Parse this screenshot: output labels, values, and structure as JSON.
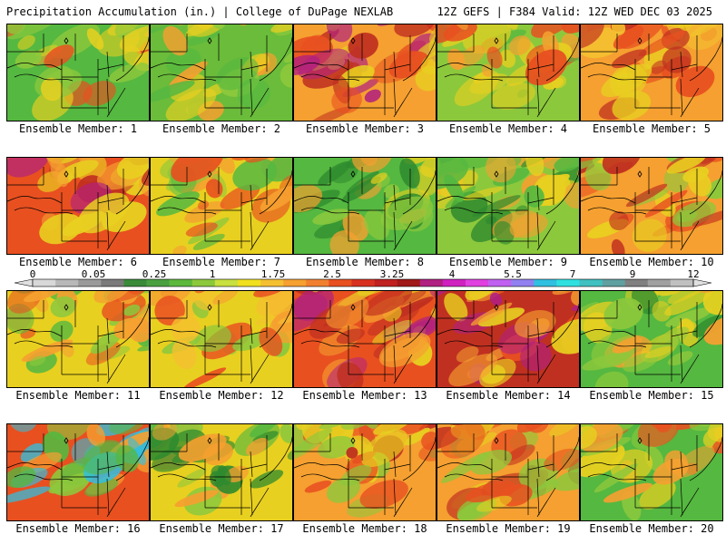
{
  "header": {
    "left": "Precipitation Accumulation (in.) | College of DuPage NEXLAB",
    "right": "12Z GEFS | F384 Valid: 12Z WED DEC 03 2025"
  },
  "panels": [
    {
      "label": "Ensemble Member: 1",
      "palette": [
        "#55b840",
        "#e8d020",
        "#f5a030",
        "#8cc83c",
        "#e85020"
      ]
    },
    {
      "label": "Ensemble Member: 2",
      "palette": [
        "#6abc3a",
        "#8cc83c",
        "#e8d020",
        "#55b840",
        "#f5a030"
      ]
    },
    {
      "label": "Ensemble Member: 3",
      "palette": [
        "#f5a030",
        "#e85020",
        "#e8d020",
        "#c03020",
        "#b02080"
      ]
    },
    {
      "label": "Ensemble Member: 4",
      "palette": [
        "#8cc83c",
        "#e8d020",
        "#f5a030",
        "#55b840",
        "#e85020"
      ]
    },
    {
      "label": "Ensemble Member: 5",
      "palette": [
        "#f5a030",
        "#e85020",
        "#e8d020",
        "#c03020",
        "#f5c030"
      ]
    },
    {
      "label": "Ensemble Member: 6",
      "palette": [
        "#e85020",
        "#c03020",
        "#f5a030",
        "#b02080",
        "#e8d020"
      ]
    },
    {
      "label": "Ensemble Member: 7",
      "palette": [
        "#e8d020",
        "#f5a030",
        "#8cc83c",
        "#55b840",
        "#e85020"
      ]
    },
    {
      "label": "Ensemble Member: 8",
      "palette": [
        "#55b840",
        "#8cc83c",
        "#e8d020",
        "#2e8a2e",
        "#f5a030"
      ]
    },
    {
      "label": "Ensemble Member: 9",
      "palette": [
        "#8cc83c",
        "#55b840",
        "#e8d020",
        "#f5a030",
        "#2e8a2e"
      ]
    },
    {
      "label": "Ensemble Member: 10",
      "palette": [
        "#f5a030",
        "#e8d020",
        "#e85020",
        "#8cc83c",
        "#c03020"
      ]
    },
    {
      "label": "Ensemble Member: 11",
      "palette": [
        "#e8d020",
        "#f5a030",
        "#8cc83c",
        "#55b840",
        "#e85020"
      ]
    },
    {
      "label": "Ensemble Member: 12",
      "palette": [
        "#e8d020",
        "#f5a030",
        "#e85020",
        "#8cc83c",
        "#f5c030"
      ]
    },
    {
      "label": "Ensemble Member: 13",
      "palette": [
        "#e85020",
        "#f5a030",
        "#c03020",
        "#e8d020",
        "#b02080"
      ]
    },
    {
      "label": "Ensemble Member: 14",
      "palette": [
        "#c03020",
        "#e85020",
        "#f5a030",
        "#b02080",
        "#e8d020"
      ]
    },
    {
      "label": "Ensemble Member: 15",
      "palette": [
        "#55b840",
        "#8cc83c",
        "#e8d020",
        "#2e8a2e",
        "#f5a030"
      ]
    },
    {
      "label": "Ensemble Member: 16",
      "palette": [
        "#e85020",
        "#f5a030",
        "#8cc83c",
        "#55b840",
        "#30c0e0"
      ]
    },
    {
      "label": "Ensemble Member: 17",
      "palette": [
        "#e8d020",
        "#8cc83c",
        "#55b840",
        "#f5a030",
        "#2e8a2e"
      ]
    },
    {
      "label": "Ensemble Member: 18",
      "palette": [
        "#f5a030",
        "#e85020",
        "#e8d020",
        "#8cc83c",
        "#c03020"
      ]
    },
    {
      "label": "Ensemble Member: 19",
      "palette": [
        "#f5a030",
        "#e8d020",
        "#e85020",
        "#8cc83c",
        "#c03020"
      ]
    },
    {
      "label": "Ensemble Member: 20",
      "palette": [
        "#55b840",
        "#e8d020",
        "#f5a030",
        "#8cc83c",
        "#e85020"
      ]
    }
  ],
  "colorbar": {
    "ticks": [
      "0",
      "0.05",
      "0.25",
      "1",
      "1.75",
      "2.5",
      "3.25",
      "4",
      "5.5",
      "7",
      "9",
      "12"
    ],
    "colors": [
      "#d8d8d8",
      "#b8b8b8",
      "#9a9a9a",
      "#7a7a7a",
      "#3a8a3a",
      "#4aa040",
      "#5cb83c",
      "#8cc83c",
      "#c8e040",
      "#f0e020",
      "#f5c030",
      "#f5a030",
      "#f08030",
      "#e85020",
      "#d83020",
      "#c02020",
      "#a01818",
      "#b02080",
      "#d020c0",
      "#e040e0",
      "#c060f0",
      "#9080f0",
      "#30c0e0",
      "#30e0e0",
      "#40c0c0",
      "#60a0a0",
      "#808080",
      "#a0a0a0",
      "#c0c0c0"
    ]
  }
}
